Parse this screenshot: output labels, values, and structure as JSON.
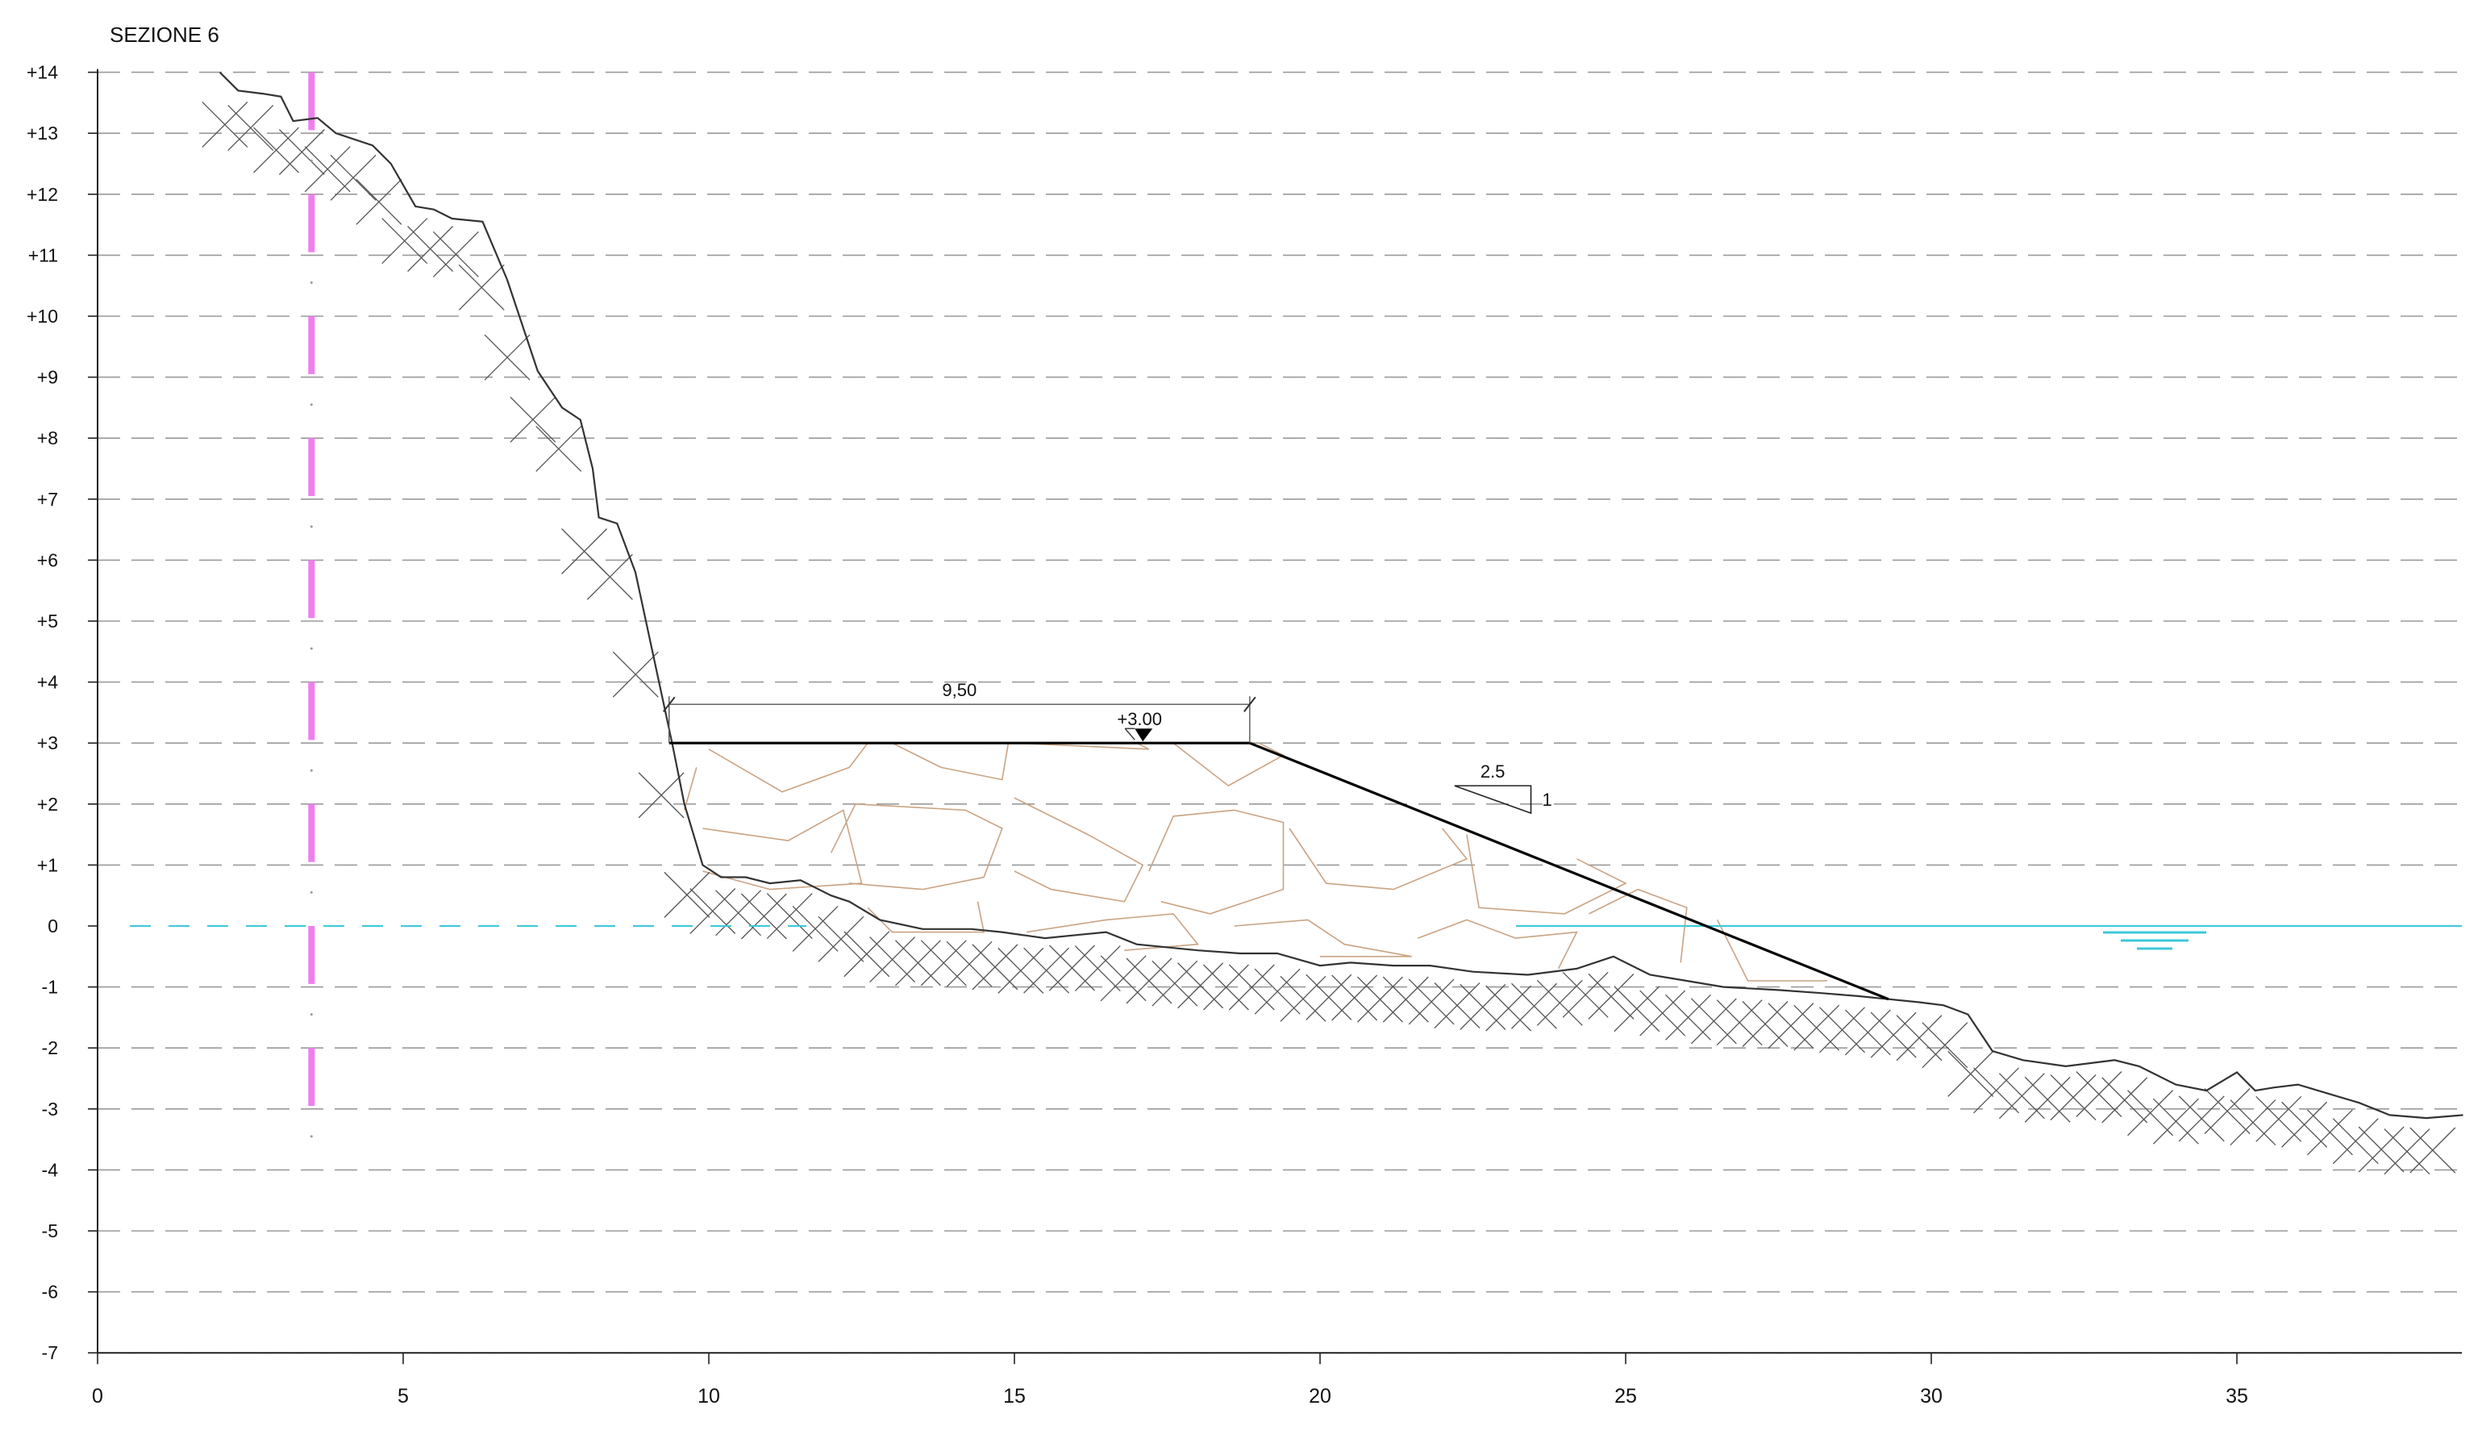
{
  "title": "SEZIONE 6",
  "y_ticks": [
    "+14",
    "+13",
    "+12",
    "+11",
    "+10",
    "+9",
    "+8",
    "+7",
    "+6",
    "+5",
    "+4",
    "+3",
    "+2",
    "+1",
    "0",
    "-1",
    "-2",
    "-3",
    "-4",
    "-5",
    "-6",
    "-7"
  ],
  "x_ticks": [
    "0",
    "5",
    "10",
    "15",
    "20",
    "25",
    "30",
    "35"
  ],
  "annotations": {
    "crest_width": "9,50",
    "crest_level": "+3.00",
    "slope_h": "2.5",
    "slope_v": "1"
  },
  "colors": {
    "axis": "#222222",
    "grid": "#9a9a9a",
    "terrain": "#333333",
    "hatch": "#555555",
    "structure": "#000000",
    "rock_fill": "#c9a383",
    "water": "#3cc8d8",
    "axis_marker": "#f07ef0"
  },
  "chart_data": {
    "type": "cross-section",
    "title": "SEZIONE 6",
    "xlim": [
      0,
      38.7
    ],
    "ylim": [
      -7,
      14
    ],
    "terrain": [
      [
        2.0,
        14.0
      ],
      [
        2.3,
        13.7
      ],
      [
        2.7,
        13.65
      ],
      [
        3.0,
        13.6
      ],
      [
        3.2,
        13.2
      ],
      [
        3.6,
        13.25
      ],
      [
        3.9,
        13.0
      ],
      [
        4.5,
        12.8
      ],
      [
        4.8,
        12.5
      ],
      [
        5.2,
        11.8
      ],
      [
        5.5,
        11.75
      ],
      [
        5.8,
        11.6
      ],
      [
        6.3,
        11.55
      ],
      [
        6.7,
        10.6
      ],
      [
        7.2,
        9.1
      ],
      [
        7.6,
        8.5
      ],
      [
        7.9,
        8.3
      ],
      [
        8.1,
        7.5
      ],
      [
        8.2,
        6.7
      ],
      [
        8.5,
        6.6
      ],
      [
        8.8,
        5.8
      ],
      [
        9.4,
        3.0
      ],
      [
        9.6,
        2.0
      ],
      [
        9.9,
        1.0
      ],
      [
        10.2,
        0.8
      ],
      [
        10.6,
        0.8
      ],
      [
        11.0,
        0.7
      ],
      [
        11.5,
        0.75
      ],
      [
        12.0,
        0.5
      ],
      [
        12.3,
        0.4
      ],
      [
        12.8,
        0.1
      ],
      [
        13.5,
        -0.05
      ],
      [
        14.3,
        -0.05
      ],
      [
        14.8,
        -0.1
      ],
      [
        15.5,
        -0.2
      ],
      [
        16.0,
        -0.15
      ],
      [
        16.5,
        -0.1
      ],
      [
        17.0,
        -0.3
      ],
      [
        18.0,
        -0.4
      ],
      [
        18.7,
        -0.45
      ],
      [
        19.3,
        -0.45
      ],
      [
        20.0,
        -0.65
      ],
      [
        20.5,
        -0.6
      ],
      [
        21.2,
        -0.65
      ],
      [
        21.8,
        -0.65
      ],
      [
        22.5,
        -0.75
      ],
      [
        23.4,
        -0.8
      ],
      [
        24.2,
        -0.7
      ],
      [
        24.8,
        -0.5
      ],
      [
        25.4,
        -0.8
      ],
      [
        26.0,
        -0.9
      ],
      [
        26.6,
        -1.0
      ],
      [
        27.5,
        -1.05
      ],
      [
        28.2,
        -1.1
      ],
      [
        28.8,
        -1.15
      ],
      [
        29.3,
        -1.2
      ],
      [
        29.8,
        -1.25
      ],
      [
        30.2,
        -1.3
      ],
      [
        30.6,
        -1.45
      ],
      [
        31.0,
        -2.05
      ],
      [
        31.5,
        -2.2
      ],
      [
        32.2,
        -2.3
      ],
      [
        33.0,
        -2.2
      ],
      [
        33.4,
        -2.3
      ],
      [
        34.0,
        -2.6
      ],
      [
        34.5,
        -2.7
      ],
      [
        35.0,
        -2.4
      ],
      [
        35.3,
        -2.7
      ],
      [
        35.6,
        -2.65
      ],
      [
        36.0,
        -2.6
      ],
      [
        36.5,
        -2.75
      ],
      [
        37.0,
        -2.9
      ],
      [
        37.5,
        -3.1
      ],
      [
        38.1,
        -3.15
      ],
      [
        38.7,
        -3.1
      ]
    ],
    "structure": {
      "crest": [
        [
          9.35,
          3.0
        ],
        [
          18.85,
          3.0
        ]
      ],
      "slope": [
        [
          18.85,
          3.0
        ],
        [
          29.3,
          -1.2
        ]
      ],
      "crest_level": 3.0,
      "crest_width": 9.5,
      "slope_ratio": "2.5 : 1"
    },
    "water_level": 0,
    "section_axis_x": 3.5,
    "section_axis_y_range": [
      -3,
      14
    ]
  }
}
